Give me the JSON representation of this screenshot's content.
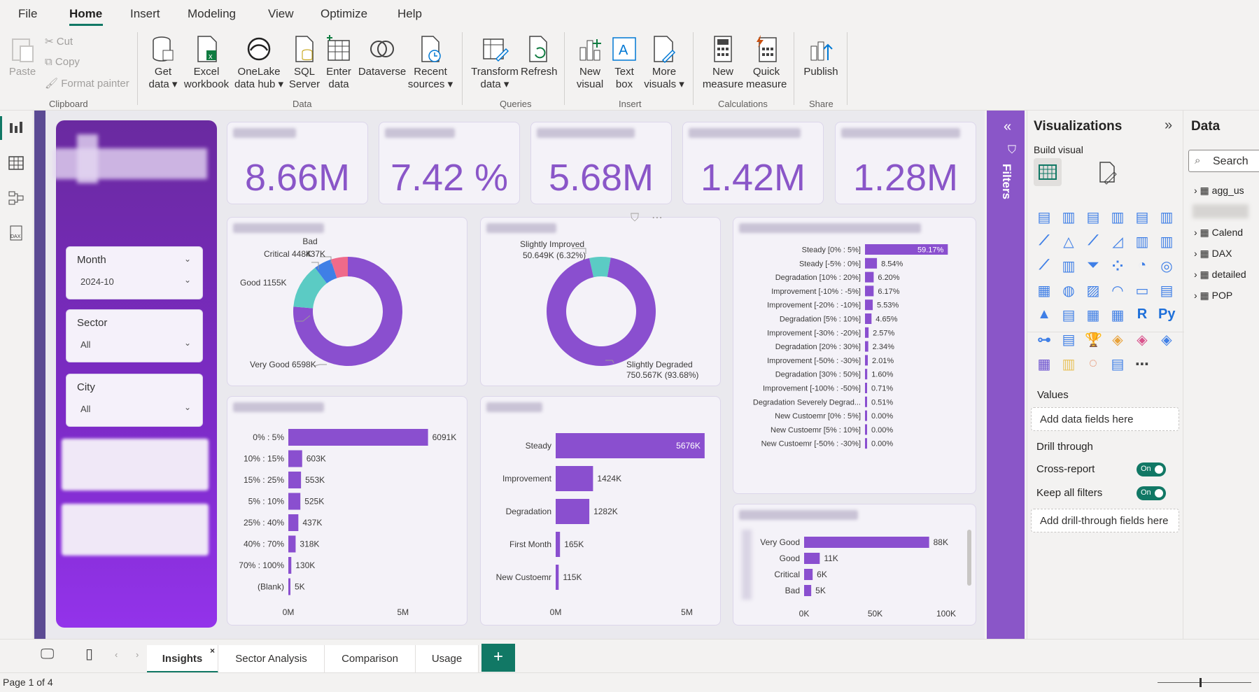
{
  "menu": {
    "file": "File",
    "home": "Home",
    "insert": "Insert",
    "modeling": "Modeling",
    "view": "View",
    "optimize": "Optimize",
    "help": "Help"
  },
  "ribbon": {
    "clipboard": {
      "paste": "Paste",
      "cut": "Cut",
      "copy": "Copy",
      "format_painter": "Format painter",
      "group": "Clipboard"
    },
    "data": {
      "get_data": [
        "Get",
        "data"
      ],
      "excel": [
        "Excel",
        "workbook"
      ],
      "onelake": [
        "OneLake",
        "data hub"
      ],
      "sql": [
        "SQL",
        "Server"
      ],
      "enter": [
        "Enter",
        "data"
      ],
      "dataverse": "Dataverse",
      "recent": [
        "Recent",
        "sources"
      ],
      "group": "Data"
    },
    "queries": {
      "transform": [
        "Transform",
        "data"
      ],
      "refresh": "Refresh",
      "group": "Queries"
    },
    "insert": {
      "new_visual": [
        "New",
        "visual"
      ],
      "text_box": [
        "Text",
        "box"
      ],
      "more_visuals": [
        "More",
        "visuals"
      ],
      "group": "Insert"
    },
    "calc": {
      "new_measure": [
        "New",
        "measure"
      ],
      "quick_measure": [
        "Quick",
        "measure"
      ],
      "group": "Calculations"
    },
    "share": {
      "publish": "Publish",
      "group": "Share"
    }
  },
  "kpis": [
    {
      "value": "8.66M"
    },
    {
      "value": "7.42 %"
    },
    {
      "value": "5.68M"
    },
    {
      "value": "1.42M"
    },
    {
      "value": "1.28M"
    }
  ],
  "slicers": [
    {
      "label": "Month",
      "value": "2024-10"
    },
    {
      "label": "Sector",
      "value": "All"
    },
    {
      "label": "City",
      "value": "All"
    }
  ],
  "donut1": {
    "labels": {
      "bad": "Bad",
      "critical": "Critical 448K",
      "critical_val": "437K",
      "good": "Good 1155K",
      "very_good": "Very Good 6598K"
    },
    "chart_data": {
      "type": "pie",
      "categories": [
        "Very Good",
        "Good",
        "Critical",
        "Bad"
      ],
      "values": [
        6598,
        1155,
        448,
        437
      ]
    }
  },
  "donut2": {
    "labels": {
      "improved": "Slightly Improved",
      "improved_val": "50.649K (6.32%)",
      "degraded": "Slightly Degraded",
      "degraded_val": "750.567K (93.68%)"
    },
    "chart_data": {
      "type": "pie",
      "categories": [
        "Slightly Improved",
        "Slightly Degraded"
      ],
      "values": [
        50.649,
        750.567
      ]
    }
  },
  "bar_diff": {
    "chart_data": {
      "type": "bar",
      "categories": [
        "Steady [0% : 5%]",
        "Steady [-5% : 0%]",
        "Degradation [10% : 20%]",
        "Improvement [-10% : -5%]",
        "Improvement [-20% : -10%]",
        "Degradation [5% : 10%]",
        "Improvement [-30% : -20%]",
        "Degradation [20% : 30%]",
        "Improvement [-50% : -30%]",
        "Degradation [30% : 50%]",
        "Improvement [-100% : -50%]",
        "Degradation Severely Degrad...",
        "New Custoemr [0% : 5%]",
        "New Custoemr [5% : 10%]",
        "New Custoemr [-50% : -30%]"
      ],
      "values": [
        59.17,
        8.54,
        6.2,
        6.17,
        5.53,
        4.65,
        2.57,
        2.34,
        2.01,
        1.6,
        0.71,
        0.51,
        0.0,
        0.0,
        0.0
      ],
      "labels": [
        "59.17%",
        "8.54%",
        "6.20%",
        "6.17%",
        "5.53%",
        "4.65%",
        "2.57%",
        "2.34%",
        "2.01%",
        "1.60%",
        "0.71%",
        "0.51%",
        "0.00%",
        "0.00%",
        "0.00%"
      ]
    }
  },
  "bar_range": {
    "chart_data": {
      "type": "bar",
      "categories": [
        "0% : 5%",
        "10% : 15%",
        "15% : 25%",
        "5% : 10%",
        "25% : 40%",
        "40% : 70%",
        "70% : 100%",
        "(Blank)"
      ],
      "values": [
        6091,
        603,
        553,
        525,
        437,
        318,
        130,
        5
      ],
      "labels": [
        "6091K",
        "603K",
        "553K",
        "525K",
        "437K",
        "318K",
        "130K",
        "5K"
      ],
      "xticks": [
        "0M",
        "5M"
      ],
      "xmax": 6500
    }
  },
  "bar_status": {
    "chart_data": {
      "type": "bar",
      "categories": [
        "Steady",
        "Improvement",
        "Degradation",
        "First Month",
        "New Custoemr"
      ],
      "values": [
        5676,
        1424,
        1282,
        165,
        115
      ],
      "labels": [
        "5676K",
        "1424K",
        "1282K",
        "165K",
        "115K"
      ],
      "xticks": [
        "0M",
        "5M"
      ],
      "xmax": 6000
    }
  },
  "bar_cat": {
    "chart_data": {
      "type": "bar",
      "categories": [
        "Very Good",
        "Good",
        "Critical",
        "Bad"
      ],
      "values": [
        88,
        11,
        6,
        5
      ],
      "labels": [
        "88K",
        "11K",
        "6K",
        "5K"
      ],
      "xticks": [
        "0K",
        "50K",
        "100K"
      ],
      "xmax": 100
    }
  },
  "filters": {
    "label": "Filters"
  },
  "viz": {
    "title": "Visualizations",
    "build": "Build visual",
    "values": "Values",
    "add_data": "Add data fields here",
    "drill": "Drill through",
    "cross": "Cross-report",
    "keep": "Keep all filters",
    "on": "On",
    "add_drill": "Add drill-through fields here"
  },
  "data": {
    "title": "Data",
    "search": "Search",
    "tables": [
      "agg_us",
      "Calend",
      "DAX",
      "detailed",
      "POP"
    ]
  },
  "tabs": [
    "Insights",
    "Sector Analysis",
    "Comparison",
    "Usage"
  ],
  "add_tab": "+",
  "status": {
    "page": "Page 1 of 4"
  }
}
